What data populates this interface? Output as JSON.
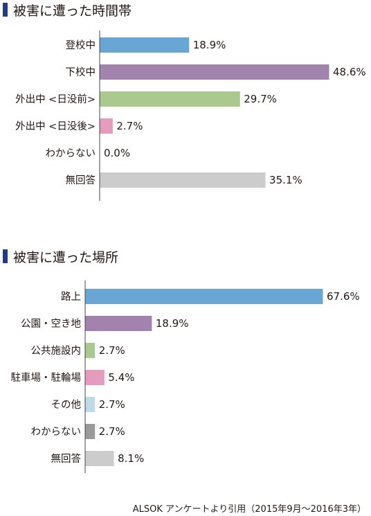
{
  "chart_data": [
    {
      "type": "bar",
      "orientation": "horizontal",
      "title": "被害に遭った時間帯",
      "categories": [
        "登校中",
        "下校中",
        "外出中 <日没前>",
        "外出中 <日没後>",
        "わからない",
        "無回答"
      ],
      "values": [
        18.9,
        48.6,
        29.7,
        2.7,
        0.0,
        35.1
      ],
      "value_labels": [
        "18.9%",
        "48.6%",
        "29.7%",
        "2.7%",
        "0.0%",
        "35.1%"
      ],
      "colors": [
        "#6aa6d3",
        "#a183ad",
        "#a9c98f",
        "#e49bbd",
        "#cccccc",
        "#cccccc"
      ],
      "unit": "%",
      "xlim": [
        0,
        48.6
      ],
      "grid": false
    },
    {
      "type": "bar",
      "orientation": "horizontal",
      "title": "被害に遭った場所",
      "categories": [
        "路上",
        "公園・空き地",
        "公共施設内",
        "駐車場・駐輪場",
        "その他",
        "わからない",
        "無回答"
      ],
      "values": [
        67.6,
        18.9,
        2.7,
        5.4,
        2.7,
        2.7,
        8.1
      ],
      "value_labels": [
        "67.6%",
        "18.9%",
        "2.7%",
        "5.4%",
        "2.7%",
        "2.7%",
        "8.1%"
      ],
      "colors": [
        "#6aa6d3",
        "#a183ad",
        "#a9c98f",
        "#e49bbd",
        "#bcdaea",
        "#9a9a9a",
        "#cccccc"
      ],
      "unit": "%",
      "xlim": [
        0,
        67.6
      ],
      "grid": false
    }
  ],
  "title_marker_color": "#1d3b8f",
  "source": "ALSOK アンケートより引用（2015年9月〜2016年3年）"
}
